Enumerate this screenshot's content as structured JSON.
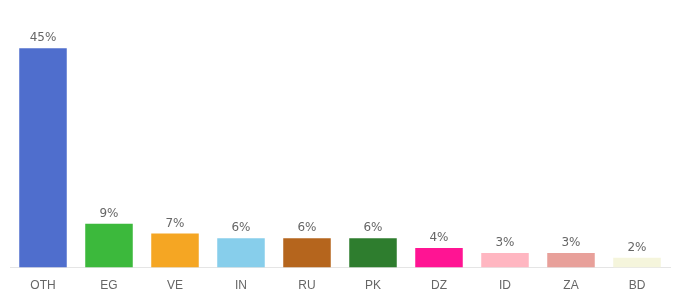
{
  "chart_data": {
    "type": "bar",
    "categories": [
      "OTH",
      "EG",
      "VE",
      "IN",
      "RU",
      "PK",
      "DZ",
      "ID",
      "ZA",
      "BD"
    ],
    "values": [
      45,
      9,
      7,
      6,
      6,
      6,
      4,
      3,
      3,
      2
    ],
    "value_labels": [
      "45%",
      "9%",
      "7%",
      "6%",
      "6%",
      "6%",
      "4%",
      "3%",
      "3%",
      "2%"
    ],
    "colors": [
      "#4F6ECD",
      "#3CB93C",
      "#F5A623",
      "#87CEEB",
      "#B5651D",
      "#2E7D2E",
      "#FF1493",
      "#FFB6C1",
      "#E8A09A",
      "#F5F5DC"
    ],
    "ylim": [
      0,
      50
    ],
    "grid": false,
    "data_labels": true,
    "tick_labels": "x"
  }
}
